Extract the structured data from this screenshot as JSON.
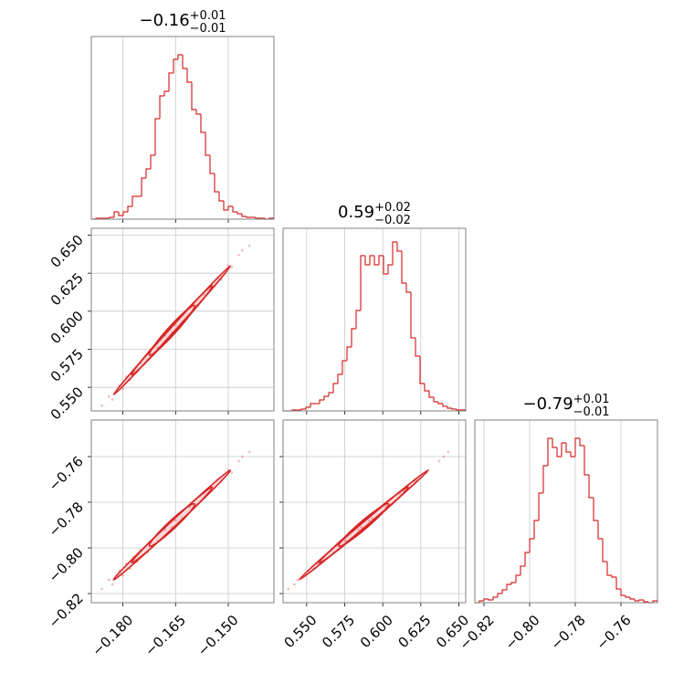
{
  "chart_data": {
    "type": "corner",
    "color": "#d62728",
    "grid": true,
    "parameters": [
      {
        "title": {
          "value": "−0.16",
          "upper": "+0.01",
          "lower": "−0.01"
        },
        "lim": [
          -0.189,
          -0.137
        ],
        "ticks": [
          {
            "value": -0.18,
            "label": "−0.180"
          },
          {
            "value": -0.165,
            "label": "−0.165"
          },
          {
            "value": -0.15,
            "label": "−0.150"
          }
        ],
        "hist_ylim": [
          0,
          200
        ],
        "bins": [
          -0.189,
          -0.1877,
          -0.1864,
          -0.1851,
          -0.1838,
          -0.1825,
          -0.1812,
          -0.1799,
          -0.1786,
          -0.1773,
          -0.176,
          -0.1747,
          -0.1734,
          -0.1721,
          -0.1708,
          -0.1695,
          -0.1682,
          -0.1669,
          -0.1656,
          -0.1643,
          -0.163,
          -0.1617,
          -0.1604,
          -0.1591,
          -0.1578,
          -0.1565,
          -0.1552,
          -0.1539,
          -0.1526,
          -0.1513,
          -0.15,
          -0.1487,
          -0.1474,
          -0.1461,
          -0.1448,
          -0.1435,
          -0.1422,
          -0.1409,
          -0.1396,
          -0.1383,
          -0.137
        ],
        "counts": [
          0,
          1,
          1,
          1,
          2,
          8,
          4,
          8,
          14,
          25,
          25,
          45,
          55,
          70,
          110,
          135,
          140,
          160,
          175,
          180,
          165,
          150,
          120,
          115,
          95,
          70,
          50,
          30,
          20,
          10,
          14,
          8,
          6,
          3,
          2,
          2,
          1,
          1,
          0,
          1
        ]
      },
      {
        "title": {
          "value": "0.59",
          "upper": "+0.02",
          "lower": "−0.02"
        },
        "lim": [
          0.5345,
          0.6545
        ],
        "ticks": [
          {
            "value": 0.55,
            "label": "0.550"
          },
          {
            "value": 0.575,
            "label": "0.575"
          },
          {
            "value": 0.6,
            "label": "0.600"
          },
          {
            "value": 0.625,
            "label": "0.625"
          },
          {
            "value": 0.65,
            "label": "0.650"
          }
        ],
        "hist_ylim": [
          0,
          200
        ],
        "bins": [
          0.5345,
          0.5375,
          0.5405,
          0.5435,
          0.5465,
          0.5495,
          0.5525,
          0.5555,
          0.5585,
          0.5615,
          0.5645,
          0.5675,
          0.5705,
          0.5735,
          0.5765,
          0.5795,
          0.5825,
          0.5855,
          0.5885,
          0.5915,
          0.5945,
          0.5975,
          0.6005,
          0.6035,
          0.6065,
          0.6095,
          0.6125,
          0.6155,
          0.6185,
          0.6215,
          0.6245,
          0.6275,
          0.6305,
          0.6335,
          0.6365,
          0.6395,
          0.6425,
          0.6455,
          0.6485,
          0.6515,
          0.6545
        ],
        "counts": [
          0,
          0,
          1,
          1,
          2,
          4,
          8,
          8,
          12,
          16,
          20,
          30,
          40,
          55,
          70,
          90,
          110,
          170,
          160,
          170,
          160,
          170,
          150,
          160,
          185,
          175,
          140,
          130,
          80,
          60,
          30,
          22,
          15,
          10,
          8,
          5,
          3,
          2,
          1,
          1
        ]
      },
      {
        "title": {
          "value": "−0.79",
          "upper": "+0.01",
          "lower": "−0.01"
        },
        "lim": [
          -0.824,
          -0.744
        ],
        "ticks": [
          {
            "value": -0.82,
            "label": "−0.82"
          },
          {
            "value": -0.8,
            "label": "−0.80"
          },
          {
            "value": -0.78,
            "label": "−0.78"
          },
          {
            "value": -0.76,
            "label": "−0.76"
          }
        ],
        "hist_ylim": [
          0,
          200
        ],
        "bins": [
          -0.824,
          -0.822,
          -0.82,
          -0.818,
          -0.816,
          -0.814,
          -0.812,
          -0.81,
          -0.808,
          -0.806,
          -0.804,
          -0.802,
          -0.8,
          -0.798,
          -0.796,
          -0.794,
          -0.792,
          -0.79,
          -0.788,
          -0.786,
          -0.784,
          -0.782,
          -0.78,
          -0.778,
          -0.776,
          -0.774,
          -0.772,
          -0.77,
          -0.768,
          -0.766,
          -0.764,
          -0.762,
          -0.76,
          -0.758,
          -0.756,
          -0.754,
          -0.752,
          -0.75,
          -0.748,
          -0.746,
          -0.744
        ],
        "counts": [
          0,
          2,
          4,
          3,
          6,
          10,
          14,
          20,
          22,
          30,
          40,
          55,
          70,
          90,
          120,
          150,
          180,
          170,
          160,
          175,
          165,
          160,
          180,
          172,
          140,
          115,
          90,
          70,
          45,
          30,
          28,
          15,
          8,
          6,
          4,
          2,
          3,
          1,
          0,
          2
        ]
      }
    ],
    "samples": [
      [
        -0.186,
        -0.184,
        -0.183,
        -0.181,
        -0.18,
        -0.179,
        -0.178,
        -0.177,
        -0.176,
        -0.175,
        -0.173,
        -0.172,
        -0.17,
        -0.168,
        -0.166,
        -0.165,
        -0.163,
        -0.161,
        -0.159,
        -0.157,
        -0.155,
        -0.153,
        -0.152,
        -0.15,
        -0.149,
        -0.147,
        -0.146,
        -0.144
      ],
      [
        0.538,
        0.544,
        0.542,
        0.551,
        0.549,
        0.557,
        0.555,
        0.561,
        0.56,
        0.566,
        0.568,
        0.575,
        0.576,
        0.584,
        0.586,
        0.591,
        0.593,
        0.602,
        0.604,
        0.611,
        0.614,
        0.622,
        0.621,
        0.63,
        0.629,
        0.637,
        0.64,
        0.643
      ],
      [
        -0.818,
        -0.814,
        -0.816,
        -0.81,
        -0.812,
        -0.807,
        -0.809,
        -0.804,
        -0.806,
        -0.801,
        -0.802,
        -0.797,
        -0.797,
        -0.792,
        -0.791,
        -0.788,
        -0.787,
        -0.782,
        -0.781,
        -0.776,
        -0.775,
        -0.77,
        -0.771,
        -0.766,
        -0.767,
        -0.762,
        -0.76,
        -0.758
      ]
    ]
  }
}
